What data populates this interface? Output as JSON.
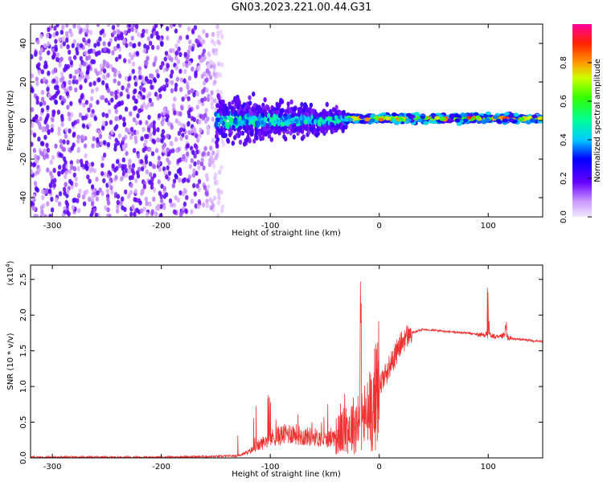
{
  "title": "GN03.2023.221.00.44.G31",
  "chart_data": [
    {
      "type": "heatmap",
      "xlabel": "Height of straight line (km)",
      "ylabel": "Frequency (Hz)",
      "xlim": [
        -320,
        150
      ],
      "ylim": [
        -50,
        50
      ],
      "xticks": [
        -300,
        -200,
        -100,
        0,
        100
      ],
      "yticks": [
        -40,
        -20,
        0,
        20,
        40
      ],
      "colorbar": {
        "label": "Normalized spectral amplitude",
        "range": [
          0,
          1
        ],
        "ticks": [
          0.0,
          0.2,
          0.4,
          0.6,
          0.8
        ],
        "tick_labels": [
          "0.0",
          "0.2",
          "0.4",
          "0.6",
          "0.8"
        ]
      },
      "regions": [
        {
          "x_range": [
            -320,
            -140
          ],
          "description_values": {
            "freq_range": [
              -50,
              50
            ],
            "amplitude": 0.1
          }
        },
        {
          "x_range": [
            -150,
            -30
          ],
          "description_values": {
            "freq_center": 0,
            "freq_spread": 12,
            "amplitude": 0.3
          }
        },
        {
          "x_range": [
            -30,
            150
          ],
          "description_values": {
            "freq_center": 1,
            "freq_spread": 2,
            "amplitude": 0.7
          }
        }
      ]
    },
    {
      "type": "line",
      "xlabel": "Height of straight line (km)",
      "ylabel": "SNR (10 * v/v)",
      "yscale_label": "(x10",
      "yscale_exp": "4",
      "yscale_close": ")",
      "xlim": [
        -320,
        150
      ],
      "ylim": [
        0,
        2.7
      ],
      "xticks": [
        -300,
        -200,
        -100,
        0,
        100
      ],
      "yticks": [
        0.0,
        0.5,
        1.0,
        1.5,
        2.0,
        2.5
      ],
      "ytick_labels": [
        "0.0",
        "0.5",
        "1.0",
        "1.5",
        "2.0",
        "2.5"
      ],
      "color": "#ee3333",
      "series": [
        {
          "x": [
            -320,
            -250,
            -200,
            -150,
            -130,
            -120,
            -110,
            -100,
            -90,
            -80,
            -70,
            -60,
            -50,
            -40,
            -35,
            -30,
            -25,
            -20,
            -15,
            -10,
            -5,
            0,
            5,
            10,
            15,
            20,
            25,
            30,
            40,
            50,
            60,
            70,
            80,
            90,
            95,
            100,
            105,
            110,
            115,
            120,
            130,
            140,
            150
          ],
          "y": [
            0.01,
            0.01,
            0.01,
            0.02,
            0.03,
            0.08,
            0.18,
            0.28,
            0.32,
            0.35,
            0.3,
            0.3,
            0.25,
            0.3,
            0.35,
            0.4,
            0.45,
            0.5,
            0.55,
            0.6,
            0.8,
            1.0,
            1.15,
            1.3,
            1.45,
            1.6,
            1.7,
            1.75,
            1.8,
            1.79,
            1.77,
            1.76,
            1.75,
            1.73,
            1.72,
            1.75,
            1.7,
            1.68,
            1.72,
            1.67,
            1.66,
            1.64,
            1.63
          ]
        }
      ]
    }
  ]
}
